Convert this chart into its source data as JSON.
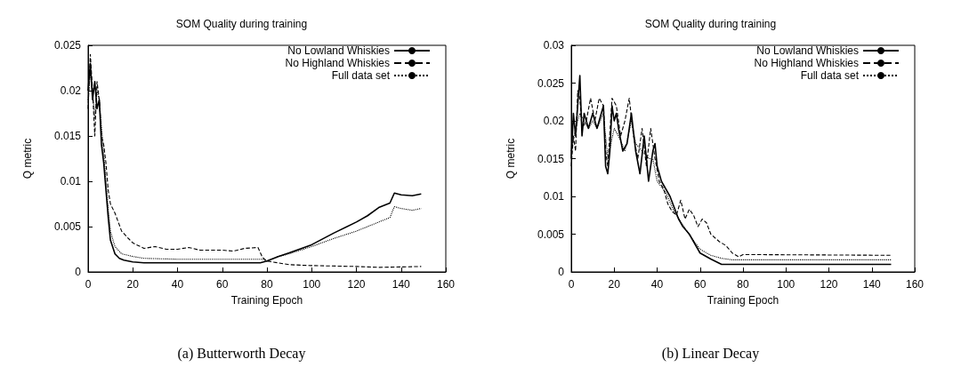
{
  "chart_data": [
    {
      "type": "line",
      "title": "SOM Quality during training",
      "xlabel": "Training Epoch",
      "ylabel": "Q metric",
      "annotations": [
        "(a) Butterworth Decay"
      ],
      "xlim": [
        0,
        160
      ],
      "xticks": [
        0,
        20,
        40,
        60,
        80,
        100,
        120,
        140,
        160
      ],
      "ylim": [
        0,
        0.025
      ],
      "yticks": [
        0,
        0.005,
        0.01,
        0.015,
        0.02,
        0.025
      ],
      "grid": false,
      "legend": "top right",
      "series": [
        {
          "name": "No Lowland Whiskies",
          "color": "#000000",
          "line_style": "solid",
          "x": [
            0,
            1,
            2,
            3,
            4,
            5,
            6,
            7,
            8,
            9,
            10,
            12,
            14,
            16,
            20,
            25,
            40,
            60,
            77,
            80,
            85,
            90,
            100,
            110,
            120,
            125,
            130,
            135,
            137,
            140,
            145,
            149
          ],
          "values": [
            0.02,
            0.023,
            0.019,
            0.021,
            0.018,
            0.019,
            0.014,
            0.012,
            0.009,
            0.006,
            0.0035,
            0.002,
            0.0015,
            0.0013,
            0.0011,
            0.001,
            0.001,
            0.001,
            0.001,
            0.0012,
            0.0017,
            0.0021,
            0.003,
            0.0043,
            0.0055,
            0.0062,
            0.0071,
            0.0076,
            0.0087,
            0.0085,
            0.0084,
            0.0086
          ]
        },
        {
          "name": "No Highland Whiskies",
          "color": "#000000",
          "line_style": "dashed",
          "x": [
            0,
            1,
            2,
            3,
            4,
            5,
            6,
            7,
            8,
            9,
            10,
            12,
            15,
            18,
            20,
            25,
            30,
            35,
            40,
            45,
            50,
            60,
            65,
            70,
            76,
            78,
            80,
            85,
            90,
            100,
            120,
            130,
            149
          ],
          "values": [
            0.018,
            0.024,
            0.02,
            0.015,
            0.021,
            0.019,
            0.015,
            0.014,
            0.012,
            0.009,
            0.0075,
            0.0065,
            0.0045,
            0.0037,
            0.0032,
            0.0026,
            0.0028,
            0.0025,
            0.0025,
            0.0027,
            0.0024,
            0.0024,
            0.0023,
            0.0026,
            0.0027,
            0.0016,
            0.0012,
            0.001,
            0.0008,
            0.0007,
            0.0006,
            0.0005,
            0.0006
          ]
        },
        {
          "name": "Full data set",
          "color": "#000000",
          "line_style": "dotted",
          "x": [
            0,
            1,
            2,
            3,
            4,
            5,
            6,
            7,
            8,
            9,
            10,
            12,
            15,
            20,
            25,
            40,
            60,
            78,
            80,
            85,
            90,
            100,
            110,
            120,
            130,
            135,
            137,
            140,
            145,
            149
          ],
          "values": [
            0.019,
            0.022,
            0.02,
            0.017,
            0.02,
            0.019,
            0.016,
            0.013,
            0.01,
            0.007,
            0.0045,
            0.0028,
            0.002,
            0.0017,
            0.0015,
            0.0014,
            0.0014,
            0.0014,
            0.0012,
            0.0017,
            0.002,
            0.0028,
            0.0037,
            0.0045,
            0.0055,
            0.006,
            0.0072,
            0.007,
            0.0068,
            0.007
          ]
        }
      ]
    },
    {
      "type": "line",
      "title": "SOM Quality during training",
      "xlabel": "Training Epoch",
      "ylabel": "Q metric",
      "annotations": [
        "(b) Linear Decay"
      ],
      "xlim": [
        0,
        160
      ],
      "xticks": [
        0,
        20,
        40,
        60,
        80,
        100,
        120,
        140,
        160
      ],
      "ylim": [
        0,
        0.03
      ],
      "yticks": [
        0,
        0.005,
        0.01,
        0.015,
        0.02,
        0.025,
        0.03
      ],
      "grid": false,
      "legend": "top right",
      "series": [
        {
          "name": "No Lowland Whiskies",
          "color": "#000000",
          "line_style": "solid",
          "x": [
            0,
            1,
            2,
            3,
            4,
            5,
            6,
            7,
            8,
            10,
            12,
            14,
            15,
            16,
            17,
            18,
            19,
            20,
            21,
            22,
            24,
            26,
            28,
            30,
            32,
            34,
            36,
            38,
            39,
            40,
            42,
            44,
            46,
            48,
            50,
            52,
            55,
            58,
            60,
            65,
            70,
            75,
            149
          ],
          "values": [
            0.015,
            0.021,
            0.018,
            0.022,
            0.026,
            0.018,
            0.021,
            0.02,
            0.019,
            0.021,
            0.019,
            0.021,
            0.022,
            0.014,
            0.013,
            0.016,
            0.022,
            0.02,
            0.021,
            0.019,
            0.016,
            0.017,
            0.021,
            0.016,
            0.013,
            0.018,
            0.012,
            0.016,
            0.017,
            0.014,
            0.012,
            0.011,
            0.01,
            0.0085,
            0.007,
            0.006,
            0.005,
            0.0035,
            0.0025,
            0.0017,
            0.001,
            0.001,
            0.001
          ]
        },
        {
          "name": "No Highland Whiskies",
          "color": "#000000",
          "line_style": "dashed",
          "x": [
            0,
            1,
            2,
            3,
            4,
            5,
            7,
            9,
            11,
            13,
            15,
            16,
            17,
            19,
            21,
            23,
            25,
            27,
            29,
            31,
            33,
            35,
            37,
            39,
            41,
            43,
            45,
            47,
            49,
            51,
            53,
            55,
            57,
            59,
            61,
            63,
            65,
            67,
            69,
            72,
            75,
            78,
            80,
            149
          ],
          "values": [
            0.014,
            0.018,
            0.016,
            0.024,
            0.023,
            0.019,
            0.02,
            0.023,
            0.02,
            0.023,
            0.022,
            0.016,
            0.014,
            0.023,
            0.022,
            0.018,
            0.02,
            0.023,
            0.018,
            0.015,
            0.019,
            0.014,
            0.019,
            0.015,
            0.012,
            0.011,
            0.009,
            0.008,
            0.0075,
            0.0095,
            0.007,
            0.0083,
            0.0075,
            0.006,
            0.007,
            0.0065,
            0.005,
            0.0045,
            0.004,
            0.0035,
            0.0025,
            0.002,
            0.0023,
            0.0022
          ]
        },
        {
          "name": "Full data set",
          "color": "#000000",
          "line_style": "dotted",
          "x": [
            0,
            2,
            4,
            6,
            8,
            10,
            12,
            15,
            17,
            20,
            22,
            25,
            28,
            30,
            33,
            36,
            38,
            40,
            44,
            48,
            52,
            56,
            60,
            65,
            70,
            75,
            149
          ],
          "values": [
            0.016,
            0.019,
            0.021,
            0.02,
            0.019,
            0.02,
            0.019,
            0.021,
            0.015,
            0.019,
            0.018,
            0.016,
            0.02,
            0.017,
            0.016,
            0.015,
            0.015,
            0.012,
            0.0105,
            0.008,
            0.0062,
            0.0045,
            0.003,
            0.0022,
            0.0018,
            0.0016,
            0.0016
          ]
        }
      ]
    }
  ]
}
